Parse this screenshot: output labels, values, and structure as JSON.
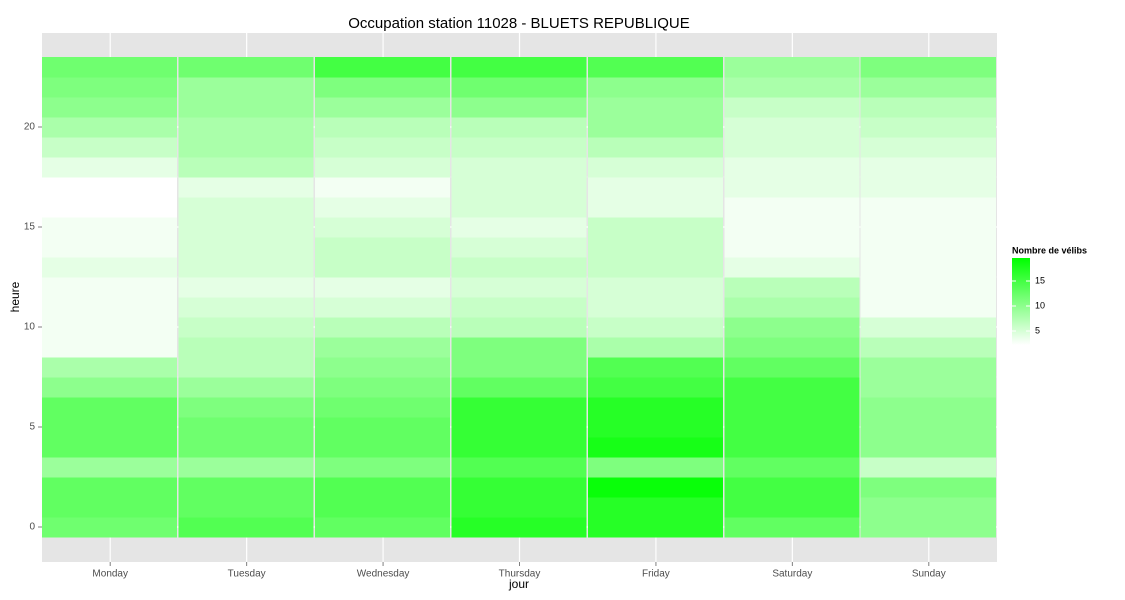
{
  "chart_data": {
    "type": "heatmap",
    "title": "Occupation station 11028 - BLUETS REPUBLIQUE",
    "x_label": "jour",
    "y_label": "heure",
    "legend_title": "Nombre de vélibs",
    "categories": [
      "Monday",
      "Tuesday",
      "Wednesday",
      "Thursday",
      "Friday",
      "Saturday",
      "Sunday"
    ],
    "y": [
      0,
      1,
      2,
      3,
      4,
      5,
      6,
      7,
      8,
      9,
      10,
      11,
      12,
      13,
      14,
      15,
      16,
      17,
      18,
      19,
      20,
      21,
      22,
      23
    ],
    "z": [
      [
        12,
        14,
        13,
        17,
        17,
        13,
        10
      ],
      [
        13,
        13,
        14,
        16,
        17,
        15,
        10
      ],
      [
        13,
        13,
        14,
        16,
        19,
        15,
        11
      ],
      [
        9,
        9,
        11,
        14,
        11,
        13,
        6
      ],
      [
        13,
        12,
        13,
        16,
        18,
        15,
        10
      ],
      [
        13,
        12,
        13,
        16,
        17,
        15,
        10
      ],
      [
        13,
        11,
        12,
        16,
        17,
        15,
        10
      ],
      [
        10,
        9,
        11,
        13,
        15,
        15,
        9
      ],
      [
        8,
        7,
        10,
        11,
        14,
        13,
        9
      ],
      [
        3,
        7,
        9,
        11,
        8,
        11,
        7
      ],
      [
        3,
        6,
        7,
        7,
        6,
        10,
        5
      ],
      [
        3,
        5,
        5,
        6,
        5,
        8,
        3
      ],
      [
        3,
        4,
        4,
        5,
        5,
        7,
        3
      ],
      [
        4,
        5,
        6,
        6,
        6,
        4,
        3
      ],
      [
        3,
        5,
        6,
        5,
        6,
        3,
        3
      ],
      [
        3,
        5,
        5,
        4,
        6,
        3,
        3
      ],
      [
        2,
        5,
        4,
        5,
        4,
        3,
        3
      ],
      [
        2,
        4,
        3,
        5,
        4,
        4,
        4
      ],
      [
        4,
        7,
        5,
        5,
        5,
        4,
        4
      ],
      [
        6,
        8,
        6,
        6,
        7,
        5,
        5
      ],
      [
        8,
        8,
        7,
        7,
        9,
        5,
        6
      ],
      [
        10,
        9,
        9,
        10,
        9,
        6,
        7
      ],
      [
        11,
        9,
        11,
        12,
        10,
        8,
        9
      ],
      [
        12,
        12,
        15,
        15,
        14,
        9,
        11
      ]
    ],
    "ylim": [
      -1.75,
      24.7
    ],
    "yticks": [
      0,
      5,
      10,
      15,
      20
    ],
    "clim": [
      2.2,
      19.6
    ],
    "cticks": [
      5,
      10,
      15
    ],
    "low_color": "#ffffff",
    "high_color": "#00ff00",
    "grid": true
  }
}
